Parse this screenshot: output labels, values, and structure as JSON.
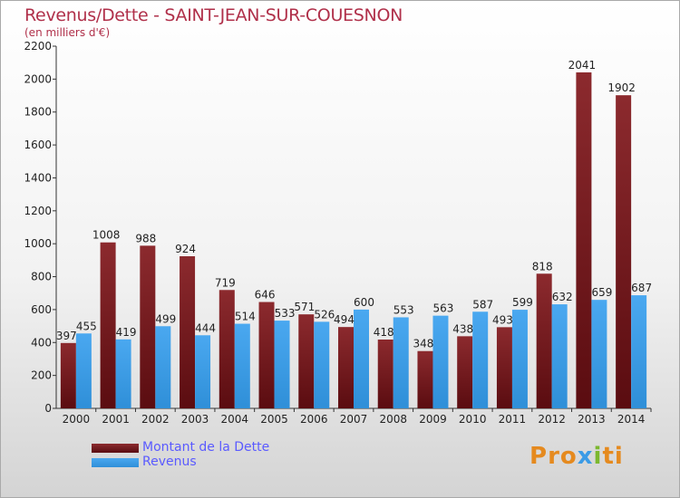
{
  "header": {
    "title": "Revenus/Dette - SAINT-JEAN-SUR-COUESNON",
    "subtitle": "(en milliers d'€)"
  },
  "colors": {
    "debt": "#7a1c20",
    "revenue": "#3b9be6",
    "accent": "#b0304a"
  },
  "logo": {
    "text": "Proxiti"
  },
  "chart_data": {
    "type": "bar",
    "title": "Revenus/Dette - SAINT-JEAN-SUR-COUESNON",
    "subtitle": "(en milliers d'€)",
    "categories": [
      "2000",
      "2001",
      "2002",
      "2003",
      "2004",
      "2005",
      "2006",
      "2007",
      "2008",
      "2009",
      "2010",
      "2011",
      "2012",
      "2013",
      "2014"
    ],
    "series": [
      {
        "name": "Montant de la Dette",
        "values": [
          397,
          1008,
          988,
          924,
          719,
          646,
          571,
          494,
          418,
          348,
          438,
          493,
          818,
          2041,
          1902
        ]
      },
      {
        "name": "Revenus",
        "values": [
          455,
          419,
          499,
          444,
          514,
          533,
          526,
          600,
          553,
          563,
          587,
          599,
          632,
          659,
          687
        ]
      }
    ],
    "ylim": [
      0,
      2200
    ],
    "yticks": [
      0,
      200,
      400,
      600,
      800,
      1000,
      1200,
      1400,
      1600,
      1800,
      2000,
      2200
    ],
    "grid": false,
    "legend_position": "bottom-left"
  }
}
